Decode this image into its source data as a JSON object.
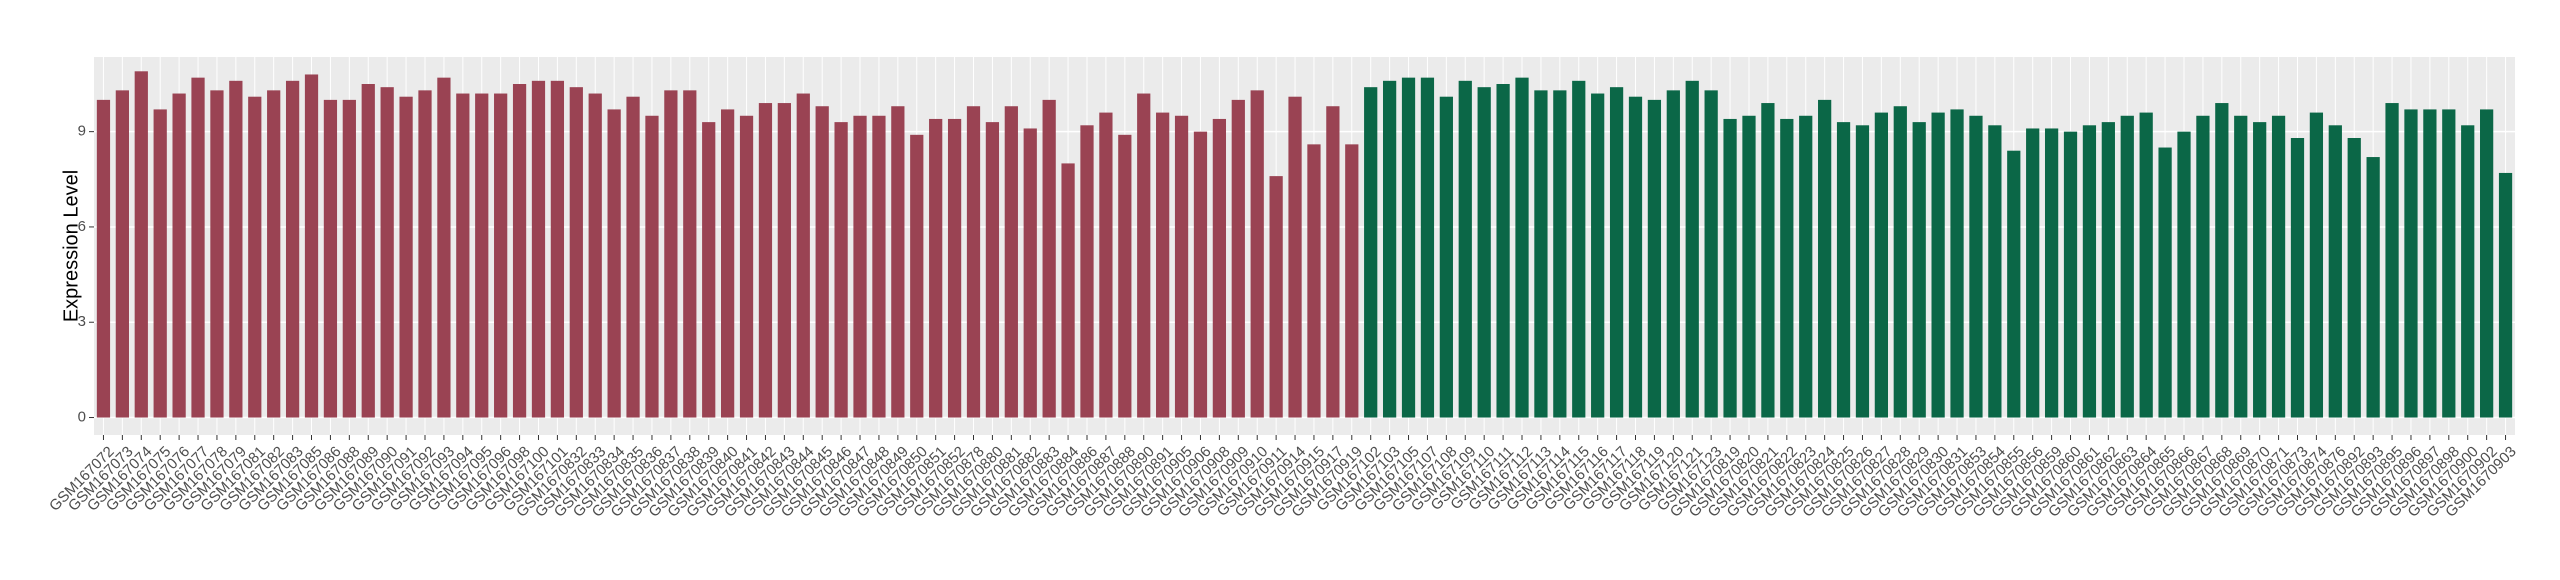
{
  "chart_data": {
    "type": "bar",
    "y_label": "Expression Level",
    "categories": [
      "GSM167072",
      "GSM167073",
      "GSM167074",
      "GSM167075",
      "GSM167076",
      "GSM167077",
      "GSM167078",
      "GSM167079",
      "GSM167081",
      "GSM167082",
      "GSM167083",
      "GSM167085",
      "GSM167086",
      "GSM167088",
      "GSM167089",
      "GSM167090",
      "GSM167091",
      "GSM167092",
      "GSM167093",
      "GSM167094",
      "GSM167095",
      "GSM167096",
      "GSM167098",
      "GSM167100",
      "GSM167101",
      "GSM1670832",
      "GSM1670833",
      "GSM1670834",
      "GSM1670835",
      "GSM1670836",
      "GSM1670837",
      "GSM1670838",
      "GSM1670839",
      "GSM1670840",
      "GSM1670841",
      "GSM1670842",
      "GSM1670843",
      "GSM1670844",
      "GSM1670845",
      "GSM1670846",
      "GSM1670847",
      "GSM1670848",
      "GSM1670849",
      "GSM1670850",
      "GSM1670851",
      "GSM1670852",
      "GSM1670878",
      "GSM1670880",
      "GSM1670881",
      "GSM1670882",
      "GSM1670883",
      "GSM1670884",
      "GSM1670886",
      "GSM1670887",
      "GSM1670888",
      "GSM1670890",
      "GSM1670891",
      "GSM1670905",
      "GSM1670906",
      "GSM1670908",
      "GSM1670909",
      "GSM1670910",
      "GSM1670911",
      "GSM1670914",
      "GSM1670915",
      "GSM1670917",
      "GSM1670919",
      "GSM167102",
      "GSM167103",
      "GSM167105",
      "GSM167107",
      "GSM167108",
      "GSM167109",
      "GSM167110",
      "GSM167111",
      "GSM167112",
      "GSM167113",
      "GSM167114",
      "GSM167115",
      "GSM167116",
      "GSM167117",
      "GSM167118",
      "GSM167119",
      "GSM167120",
      "GSM167121",
      "GSM167123",
      "GSM1670819",
      "GSM1670820",
      "GSM1670821",
      "GSM1670822",
      "GSM1670823",
      "GSM1670824",
      "GSM1670825",
      "GSM1670826",
      "GSM1670827",
      "GSM1670828",
      "GSM1670829",
      "GSM1670830",
      "GSM1670831",
      "GSM1670853",
      "GSM1670854",
      "GSM1670855",
      "GSM1670856",
      "GSM1670859",
      "GSM1670860",
      "GSM1670861",
      "GSM1670862",
      "GSM1670863",
      "GSM1670864",
      "GSM1670865",
      "GSM1670866",
      "GSM1670867",
      "GSM1670868",
      "GSM1670869",
      "GSM1670870",
      "GSM1670871",
      "GSM1670873",
      "GSM1670874",
      "GSM1670876",
      "GSM1670892",
      "GSM1670893",
      "GSM1670895",
      "GSM1670896",
      "GSM1670897",
      "GSM1670898",
      "GSM1670900",
      "GSM1670902",
      "GSM1670903"
    ],
    "values": [
      10.0,
      10.3,
      10.9,
      9.7,
      10.2,
      10.7,
      10.3,
      10.6,
      10.1,
      10.3,
      10.6,
      10.8,
      10.0,
      10.0,
      10.5,
      10.4,
      10.1,
      10.3,
      10.7,
      10.2,
      10.2,
      10.2,
      10.5,
      10.6,
      10.6,
      10.4,
      10.2,
      9.7,
      10.1,
      9.5,
      10.3,
      10.3,
      9.3,
      9.7,
      9.5,
      9.9,
      9.9,
      10.2,
      9.8,
      9.3,
      9.5,
      9.5,
      9.8,
      8.9,
      9.4,
      9.4,
      9.8,
      9.3,
      9.8,
      9.1,
      10.0,
      8.0,
      9.2,
      9.6,
      8.9,
      10.2,
      9.6,
      9.5,
      9.0,
      9.4,
      10.0,
      10.3,
      7.6,
      10.1,
      8.6,
      9.8,
      8.6,
      10.4,
      10.6,
      10.7,
      10.7,
      10.1,
      10.6,
      10.4,
      10.5,
      10.7,
      10.3,
      10.3,
      10.6,
      10.2,
      10.4,
      10.1,
      10.0,
      10.3,
      10.6,
      10.3,
      9.4,
      9.5,
      9.9,
      9.4,
      9.5,
      10.0,
      9.3,
      9.2,
      9.6,
      9.8,
      9.3,
      9.6,
      9.7,
      9.5,
      9.2,
      8.4,
      9.1,
      9.1,
      9.0,
      9.2,
      9.3,
      9.5,
      9.6,
      8.5,
      9.0,
      9.5,
      9.9,
      9.5,
      9.3,
      9.5,
      8.8,
      9.6,
      9.2,
      8.8,
      8.2,
      9.9,
      9.7,
      9.7,
      9.7,
      9.2,
      9.7,
      7.7
    ],
    "colors": [
      "#9a4353",
      "#9a4353",
      "#9a4353",
      "#9a4353",
      "#9a4353",
      "#9a4353",
      "#9a4353",
      "#9a4353",
      "#9a4353",
      "#9a4353",
      "#9a4353",
      "#9a4353",
      "#9a4353",
      "#9a4353",
      "#9a4353",
      "#9a4353",
      "#9a4353",
      "#9a4353",
      "#9a4353",
      "#9a4353",
      "#9a4353",
      "#9a4353",
      "#9a4353",
      "#9a4353",
      "#9a4353",
      "#9a4353",
      "#9a4353",
      "#9a4353",
      "#9a4353",
      "#9a4353",
      "#9a4353",
      "#9a4353",
      "#9a4353",
      "#9a4353",
      "#9a4353",
      "#9a4353",
      "#9a4353",
      "#9a4353",
      "#9a4353",
      "#9a4353",
      "#9a4353",
      "#9a4353",
      "#9a4353",
      "#9a4353",
      "#9a4353",
      "#9a4353",
      "#9a4353",
      "#9a4353",
      "#9a4353",
      "#9a4353",
      "#9a4353",
      "#9a4353",
      "#9a4353",
      "#9a4353",
      "#9a4353",
      "#9a4353",
      "#9a4353",
      "#9a4353",
      "#9a4353",
      "#9a4353",
      "#9a4353",
      "#9a4353",
      "#9a4353",
      "#9a4353",
      "#9a4353",
      "#9a4353",
      "#9a4353",
      "#0b6747",
      "#0b6747",
      "#0b6747",
      "#0b6747",
      "#0b6747",
      "#0b6747",
      "#0b6747",
      "#0b6747",
      "#0b6747",
      "#0b6747",
      "#0b6747",
      "#0b6747",
      "#0b6747",
      "#0b6747",
      "#0b6747",
      "#0b6747",
      "#0b6747",
      "#0b6747",
      "#0b6747",
      "#0b6747",
      "#0b6747",
      "#0b6747",
      "#0b6747",
      "#0b6747",
      "#0b6747",
      "#0b6747",
      "#0b6747",
      "#0b6747",
      "#0b6747",
      "#0b6747",
      "#0b6747",
      "#0b6747",
      "#0b6747",
      "#0b6747",
      "#0b6747",
      "#0b6747",
      "#0b6747",
      "#0b6747",
      "#0b6747",
      "#0b6747",
      "#0b6747",
      "#0b6747",
      "#0b6747",
      "#0b6747",
      "#0b6747",
      "#0b6747",
      "#0b6747",
      "#0b6747",
      "#0b6747",
      "#0b6747",
      "#0b6747",
      "#0b6747",
      "#0b6747",
      "#0b6747",
      "#0b6747",
      "#0b6747",
      "#0b6747",
      "#0b6747",
      "#0b6747",
      "#0b6747",
      "#0b6747",
      "#0b6747"
    ],
    "ylim": [
      -0.55,
      11.35
    ],
    "yticks": [
      0,
      3,
      6,
      9
    ],
    "grid": true
  }
}
